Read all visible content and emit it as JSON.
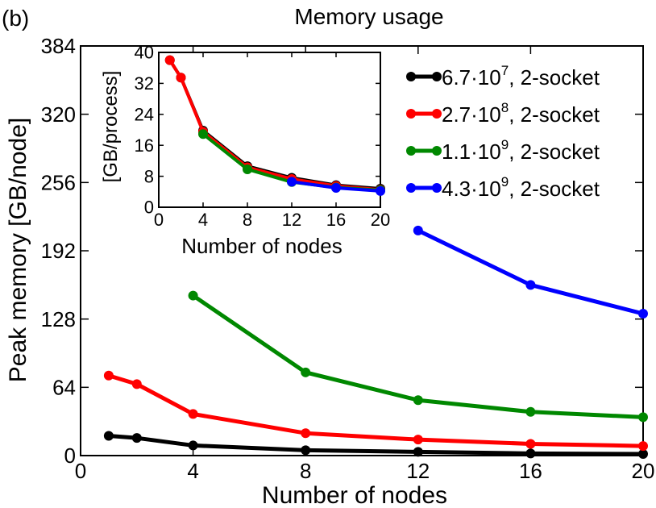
{
  "panel_label": "(b)",
  "chart_data": [
    {
      "type": "line",
      "title": "Memory usage",
      "xlabel": "Number of nodes",
      "ylabel": "Peak memory [GB/node]",
      "xlim": [
        0,
        20
      ],
      "ylim": [
        0,
        384
      ],
      "xticks": [
        0,
        4,
        8,
        12,
        16,
        20
      ],
      "yticks": [
        0,
        64,
        128,
        192,
        256,
        320,
        384
      ],
      "grid": false,
      "legend_position": "top-right",
      "series": [
        {
          "name": "6.7·10^7, 2-socket",
          "legend": {
            "base": "6.7·10",
            "exp": "7",
            "suffix": ", 2-socket"
          },
          "color": "#000000",
          "x": [
            1,
            2,
            4,
            8,
            12,
            16,
            20
          ],
          "y": [
            18.5,
            16.5,
            9.5,
            5,
            3.5,
            2,
            1.5
          ]
        },
        {
          "name": "2.7·10^8, 2-socket",
          "legend": {
            "base": "2.7·10",
            "exp": "8",
            "suffix": ", 2-socket"
          },
          "color": "#ff0000",
          "x": [
            1,
            2,
            4,
            8,
            12,
            16,
            20
          ],
          "y": [
            75,
            67,
            39,
            21,
            15,
            11,
            9
          ]
        },
        {
          "name": "1.1·10^9, 2-socket",
          "legend": {
            "base": "1.1·10",
            "exp": "9",
            "suffix": ", 2-socket"
          },
          "color": "#008800",
          "x": [
            4,
            8,
            12,
            16,
            20
          ],
          "y": [
            150,
            78,
            52,
            41,
            36
          ]
        },
        {
          "name": "4.3·10^9, 2-socket",
          "legend": {
            "base": "4.3·10",
            "exp": "9",
            "suffix": ", 2-socket"
          },
          "color": "#0000ff",
          "x": [
            12,
            16,
            20
          ],
          "y": [
            211,
            160,
            133
          ]
        }
      ]
    },
    {
      "type": "line",
      "xlabel": "Number of nodes",
      "ylabel": "[GB/process]",
      "xlim": [
        0,
        20
      ],
      "ylim": [
        0,
        40
      ],
      "xticks": [
        0,
        4,
        8,
        12,
        16,
        20
      ],
      "yticks": [
        0,
        8,
        16,
        24,
        32,
        40
      ],
      "grid": false,
      "series": [
        {
          "name": "6.7·10^7, 2-socket",
          "color": "#000000",
          "x": [
            1,
            2,
            4,
            8,
            12,
            16,
            20
          ],
          "y": [
            38,
            33.5,
            19.8,
            10.6,
            7.6,
            5.7,
            4.8
          ]
        },
        {
          "name": "2.7·10^8, 2-socket",
          "color": "#ff0000",
          "x": [
            1,
            2,
            4,
            8,
            12,
            16,
            20
          ],
          "y": [
            38,
            33.5,
            19.5,
            10.3,
            7.3,
            5.5,
            4.5
          ]
        },
        {
          "name": "1.1·10^9, 2-socket",
          "color": "#008800",
          "x": [
            4,
            8,
            12,
            16,
            20
          ],
          "y": [
            18.9,
            9.8,
            6.5,
            5.1,
            4.4
          ]
        },
        {
          "name": "4.3·10^9, 2-socket",
          "color": "#0000ff",
          "x": [
            12,
            16,
            20
          ],
          "y": [
            6.6,
            5.0,
            4.2
          ]
        }
      ]
    }
  ]
}
